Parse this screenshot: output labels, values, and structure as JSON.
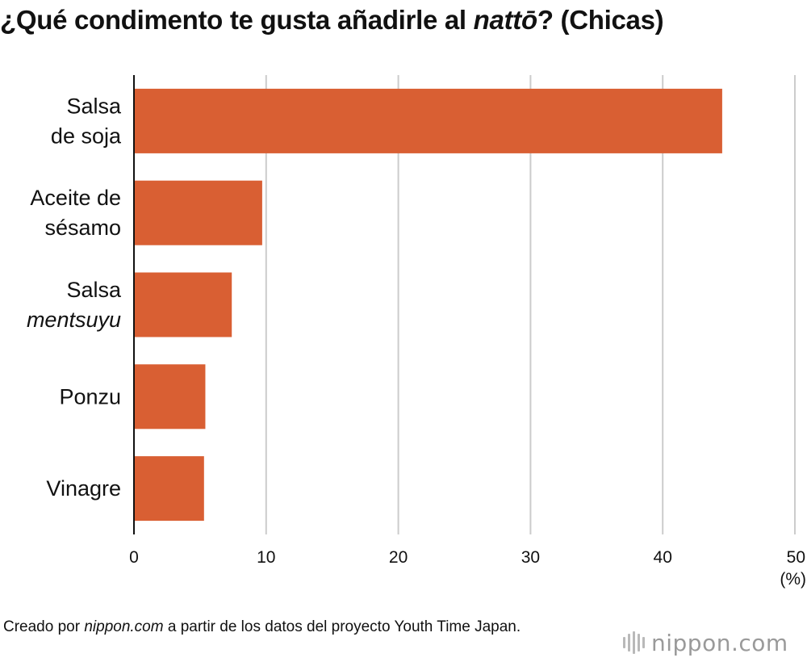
{
  "title": {
    "before": "¿Qué condimento te gusta añadirle al ",
    "italic": "nattō",
    "after": "? (Chicas)"
  },
  "chart_data": {
    "type": "bar",
    "orientation": "horizontal",
    "categories": [
      [
        {
          "text": "Salsa",
          "italic": false
        },
        {
          "text": "de soja",
          "italic": false
        }
      ],
      [
        {
          "text": "Aceite de",
          "italic": false
        },
        {
          "text": "sésamo",
          "italic": false
        }
      ],
      [
        {
          "text": "Salsa",
          "italic": false
        },
        {
          "text": "mentsuyu",
          "italic": true
        }
      ],
      [
        {
          "text": "Ponzu",
          "italic": false
        }
      ],
      [
        {
          "text": "Vinagre",
          "italic": false
        }
      ]
    ],
    "values": [
      44.5,
      9.7,
      7.4,
      5.4,
      5.3
    ],
    "xlim": [
      0,
      50
    ],
    "xticks": [
      0,
      10,
      20,
      30,
      40,
      50
    ],
    "unit_label": "(%)",
    "grid": true,
    "bar_color": "#d95f33",
    "grid_color": "#cccccc"
  },
  "footer": {
    "before": "Creado por ",
    "italic": "nippon.com",
    "after": " a partir de los datos del proyecto Youth Time Japan."
  },
  "logo": {
    "text": "nippon.com"
  }
}
